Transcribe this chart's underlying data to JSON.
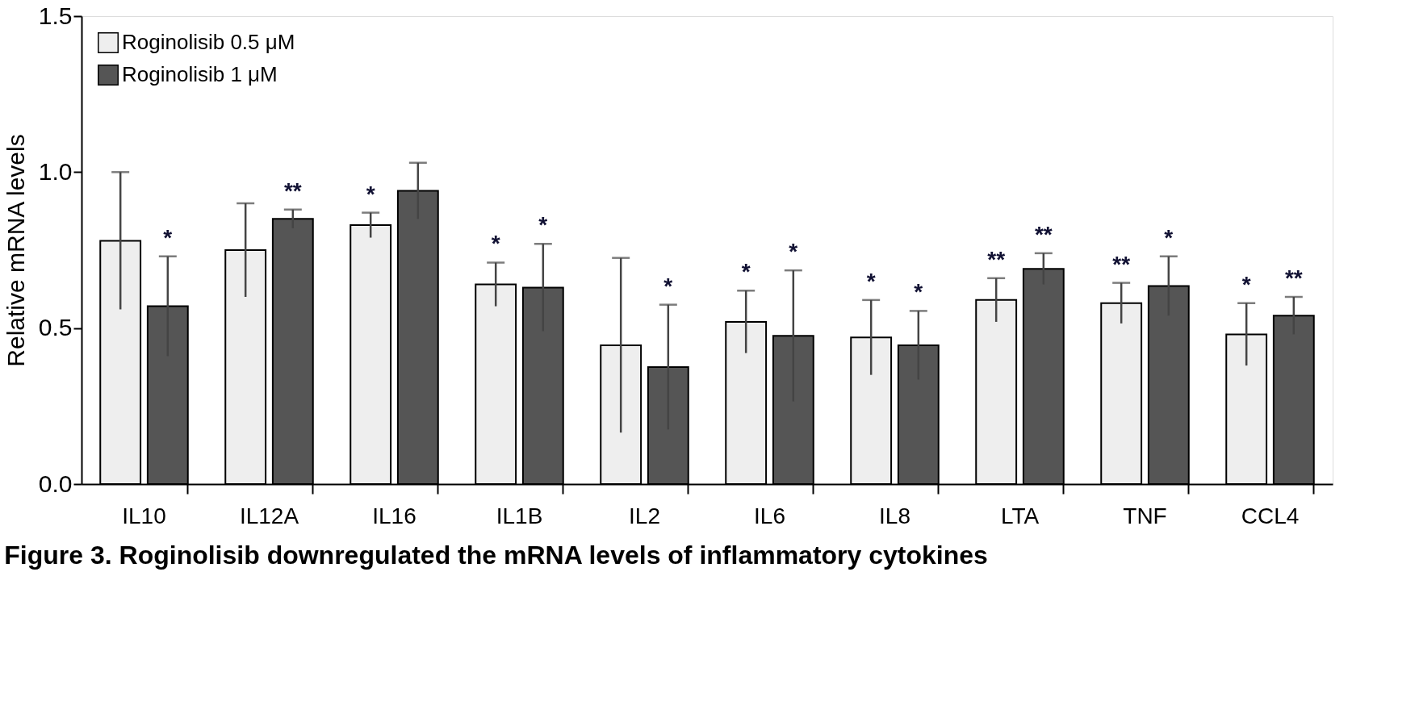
{
  "chart_data": {
    "type": "bar",
    "title": "Figure 3. Roginolisib downregulated the mRNA levels of inflammatory cytokines",
    "ylabel": "Relative mRNA levels",
    "categories": [
      "IL10",
      "IL12A",
      "IL16",
      "IL1B",
      "IL2",
      "IL6",
      "IL8",
      "LTA",
      "TNF",
      "CCL4"
    ],
    "series": [
      {
        "name": "Roginolisib 0.5 μM",
        "color": "#eeeeee",
        "values": [
          0.78,
          0.75,
          0.83,
          0.64,
          0.445,
          0.52,
          0.47,
          0.59,
          0.58,
          0.48
        ],
        "errors": [
          0.22,
          0.15,
          0.04,
          0.07,
          0.28,
          0.1,
          0.12,
          0.07,
          0.065,
          0.1
        ],
        "value_labels": [
          null,
          null,
          "*",
          "*",
          null,
          "*",
          "*",
          "**",
          "**",
          "*"
        ]
      },
      {
        "name": "Roginolisib 1 μM",
        "color": "#555555",
        "values": [
          0.57,
          0.85,
          0.94,
          0.63,
          0.375,
          0.475,
          0.445,
          0.69,
          0.635,
          0.54
        ],
        "errors": [
          0.16,
          0.03,
          0.09,
          0.14,
          0.2,
          0.21,
          0.11,
          0.05,
          0.095,
          0.06
        ],
        "value_labels": [
          "*",
          "**",
          null,
          "*",
          "*",
          "*",
          "*",
          "**",
          "*",
          "**"
        ]
      }
    ],
    "ylim": [
      0,
      1.5
    ],
    "yticks": [
      {
        "value": 0,
        "label": "0.0"
      },
      0.5,
      {
        "value": 1,
        "label": "1.0"
      },
      1.5
    ],
    "legend": "top left",
    "grid": false
  }
}
